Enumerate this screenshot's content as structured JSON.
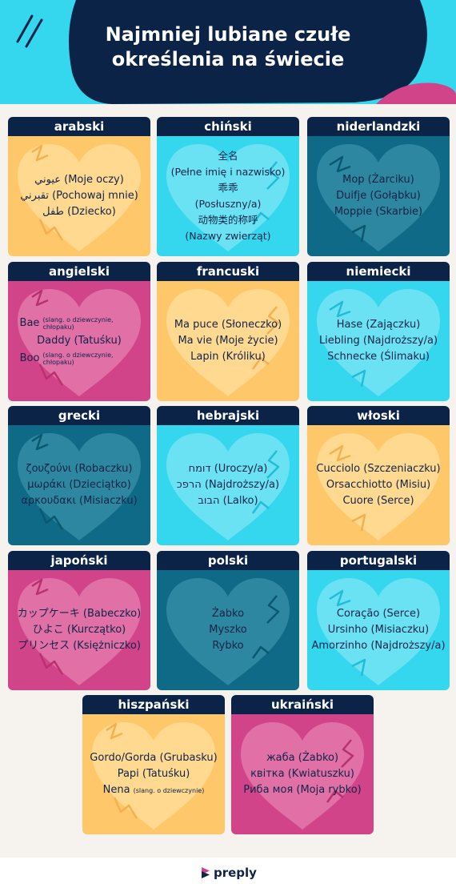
{
  "title": {
    "line1": "Najmniej lubiane czułe",
    "line2": "określenia na świecie"
  },
  "colors": {
    "navy": "#0b2346",
    "yellow": "#fdc76a",
    "cyan": "#34d7ee",
    "teal": "#0e6a86",
    "pink": "#d2448a"
  },
  "cards": [
    {
      "name": "arabski",
      "color": "yellow",
      "lines": [
        {
          "rtl": "عيوني",
          "text": " (Moje oczy)"
        },
        {
          "rtl": "تقبرني",
          "text": " (Pochowaj mnie)"
        },
        {
          "rtl": "طفل",
          "text": " (Dziecko)"
        }
      ]
    },
    {
      "name": "chiński",
      "color": "cyan",
      "lines": [
        {
          "text": "全名"
        },
        {
          "text": "(Pełne imię i nazwisko)"
        },
        {
          "text": "乖乖"
        },
        {
          "text": "(Posłuszny/a)"
        },
        {
          "text": "动物类的称呼"
        },
        {
          "text": "(Nazwy zwierząt)"
        }
      ]
    },
    {
      "name": "niderlandzki",
      "color": "teal",
      "lines": [
        {
          "text": "Mop (Żarciku)"
        },
        {
          "text": "Duifje (Gołąbku)"
        },
        {
          "text": "Moppie (Skarbie)"
        }
      ]
    },
    {
      "name": "angielski",
      "color": "pink",
      "lines": [
        {
          "text": "Bae",
          "note": "(slang. o dziewczynie, chłopaku)"
        },
        {
          "text": "Daddy (Tatuśku)"
        },
        {
          "text": "Boo",
          "note": "(slang. o dziewczynie, chłopaku)"
        }
      ]
    },
    {
      "name": "francuski",
      "color": "yellow",
      "lines": [
        {
          "text": "Ma puce (Słoneczko)"
        },
        {
          "text": "Ma vie (Moje życie)"
        },
        {
          "text": "Lapin (Króliku)"
        }
      ]
    },
    {
      "name": "niemiecki",
      "color": "cyan",
      "lines": [
        {
          "text": "Hase (Zajączku)"
        },
        {
          "text": "Liebling (Najdroższy/a)"
        },
        {
          "text": "Schnecke (Ślimaku)"
        }
      ]
    },
    {
      "name": "grecki",
      "color": "teal",
      "lines": [
        {
          "text": "ζουζούνι (Robaczku)"
        },
        {
          "text": "μωράκι (Dzieciątko)"
        },
        {
          "text": "αρκουδακι (Misiaczku)"
        }
      ]
    },
    {
      "name": "hebrajski",
      "color": "cyan",
      "lines": [
        {
          "rtl": "דומח",
          "text": " (Uroczy/a)"
        },
        {
          "rtl": "הרפכ",
          "text": " (Najdroższy/a)"
        },
        {
          "rtl": "הבוב",
          "text": " (Lalko)"
        }
      ]
    },
    {
      "name": "włoski",
      "color": "yellow",
      "lines": [
        {
          "text": "Cucciolo (Szczeniaczku)"
        },
        {
          "text": "Orsacchiotto (Misiu)"
        },
        {
          "text": "Cuore (Serce)"
        }
      ]
    },
    {
      "name": "japoński",
      "color": "pink",
      "lines": [
        {
          "text": "カップケーキ (Babeczko)"
        },
        {
          "text": "ひよこ (Kurczątko)"
        },
        {
          "text": "プリンセス (Księżniczko)"
        }
      ]
    },
    {
      "name": "polski",
      "color": "teal",
      "lines": [
        {
          "text": "Żabko"
        },
        {
          "text": "Myszko"
        },
        {
          "text": "Rybko"
        }
      ]
    },
    {
      "name": "portugalski",
      "color": "cyan",
      "lines": [
        {
          "text": "Coração (Serce)"
        },
        {
          "text": "Ursinho (Misiaczku)"
        },
        {
          "text": "Amorzinho (Najdroższy/a)"
        }
      ]
    },
    {
      "name": "hiszpański",
      "color": "yellow",
      "lines": [
        {
          "text": "Gordo/Gorda (Grubasku)"
        },
        {
          "text": "Papi (Tatuśku)"
        },
        {
          "text": "Nena",
          "note": "(slang. o dziewczynie)",
          "oneline": true
        }
      ]
    },
    {
      "name": "ukraiński",
      "color": "pink",
      "lines": [
        {
          "text": "жаба (Żabko)"
        },
        {
          "text": "квітка (Kwiatuszku)"
        },
        {
          "text": "Риба моя (Moja rybko)"
        }
      ]
    }
  ],
  "footer": {
    "brand": "preply"
  }
}
